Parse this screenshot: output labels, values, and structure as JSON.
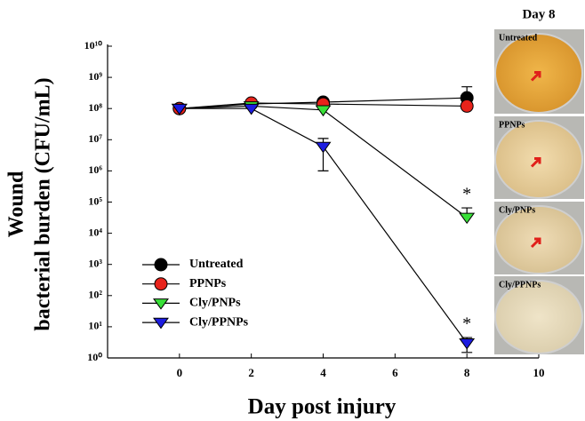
{
  "chart_data": {
    "type": "line",
    "x_label": "Day post injury",
    "y_label": [
      "Wound",
      "bacterial burden (CFU/mL)"
    ],
    "x": [
      0,
      2,
      4,
      8
    ],
    "series": [
      {
        "name": "Untreated",
        "color": "#000000",
        "marker": "circle",
        "values": [
          100000000,
          140000000,
          160000000,
          220000000
        ],
        "errors": [
          null,
          null,
          null,
          280000000
        ]
      },
      {
        "name": "PPNPs",
        "color": "#e8231b",
        "marker": "circle",
        "values": [
          100000000,
          150000000,
          140000000,
          120000000
        ],
        "errors": [
          null,
          null,
          null,
          null
        ]
      },
      {
        "name": "Cly/PNPs",
        "color": "#38e038",
        "marker": "triangle-down",
        "values": [
          100000000,
          120000000,
          90000000,
          32000
        ],
        "errors": [
          null,
          null,
          null,
          33000
        ]
      },
      {
        "name": "Cly/PPNPs",
        "color": "#1c1ce0",
        "marker": "triangle-down",
        "values": [
          100000000,
          100000000,
          6000000,
          3
        ],
        "errors": [
          null,
          null,
          5000000,
          1.5
        ]
      }
    ],
    "annotations": [
      "*",
      "*"
    ],
    "xlim": [
      -2,
      10
    ],
    "xticks": [
      0,
      2,
      4,
      6,
      8,
      10
    ],
    "ylim": [
      1,
      10000000000
    ],
    "log_y": true,
    "yticks": [
      {
        "value": 1,
        "label": "10⁰"
      },
      {
        "value": 10,
        "label": "10¹"
      },
      {
        "value": 100,
        "label": "10²"
      },
      {
        "value": 1000,
        "label": "10³"
      },
      {
        "value": 10000,
        "label": "10⁴"
      },
      {
        "value": 100000,
        "label": "10⁵"
      },
      {
        "value": 1000000,
        "label": "10⁶"
      },
      {
        "value": 10000000,
        "label": "10⁷"
      },
      {
        "value": 100000000,
        "label": "10⁸"
      },
      {
        "value": 1000000000,
        "label": "10⁹"
      },
      {
        "value": 10000000000,
        "label": "10¹⁰"
      }
    ],
    "legend": "lower-left",
    "panel": {
      "title": "Day 8",
      "labels": [
        "Untreated",
        "PPNPs",
        "Cly/PNPs",
        "Cly/PPNPs"
      ]
    }
  }
}
